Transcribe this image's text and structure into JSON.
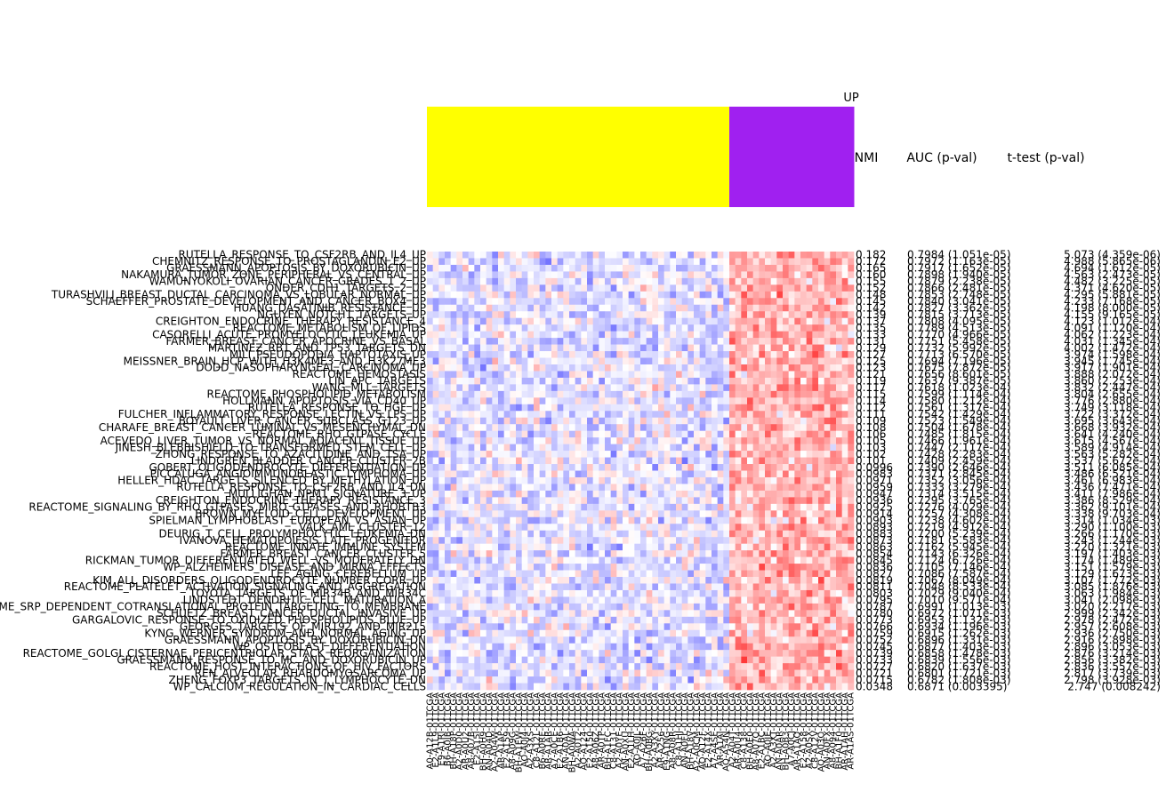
{
  "chart_data": {
    "type": "heatmap",
    "group_label": "UP",
    "group_colors": [
      "#ffff00",
      "#a020f0"
    ],
    "group_sizes": [
      51,
      21
    ],
    "color_scale": {
      "low": "#0000ff",
      "mid": "#ffffff",
      "high": "#ff0000"
    },
    "stat_headers": [
      "NMI",
      "AUC (p-val)",
      "t-test (p-val)"
    ],
    "rows": [
      {
        "label": "RUTELLA_RESPONSE_TO_CSF2RB_AND_IL4_UP",
        "nmi": "0.182",
        "auc": "0.7984 (1.051e-05)",
        "ttest": "5.073 (4.359e-06)"
      },
      {
        "label": "CHEMNITZ_RESPONSE_TO_PROSTAGLANDIN_E2_UP",
        "nmi": "0.172",
        "auc": "0.7972 (1.163e-05)",
        "ttest": "4.988 (5.865e-06)"
      },
      {
        "label": "GRAESSMANN_APOPTOSIS_BY_DOXORUBICIN_UP",
        "nmi": "0.165",
        "auc": "0.7917 (1.652e-05)",
        "ttest": "4.694 (1.612e-05)"
      },
      {
        "label": "NAKAMURA_TUMOR_ZONE_PERIPHERAL_VS_CENTRAL_UP",
        "nmi": "0.160",
        "auc": "0.7898 (1.940e-05)",
        "ttest": "4.563 (2.473e-05)"
      },
      {
        "label": "WAMUNYOKOLI_OVARIAN_CANCER_GRADES_1_2_UP",
        "nmi": "0.155",
        "auc": "0.7879 (2.238e-05)",
        "ttest": "4.482 (3.225e-05)"
      },
      {
        "label": "ONDER_CDH1_TARGETS_2_UP",
        "nmi": "0.152",
        "auc": "0.7866 (2.481e-05)",
        "ttest": "4.371 (4.620e-05)"
      },
      {
        "label": "TURASHVILI_BREAST_DUCTAL_CARCINOMA_VS_LOBULAR_NORMAL_UP",
        "nmi": "0.148",
        "auc": "0.7853 (2.748e-05)",
        "ttest": "4.295 (5.881e-05)"
      },
      {
        "label": "SCHAEFFER_PROSTATE_DEVELOPMENT_AND_CANCER_BOX4_UP",
        "nmi": "0.145",
        "auc": "0.7840 (3.041e-05)",
        "ttest": "4.233 (7.168e-05)"
      },
      {
        "label": "HUANG_DASATINIB_RESISTANCE_UP",
        "nmi": "0.142",
        "auc": "0.7827 (3.362e-05)",
        "ttest": "4.198 (8.000e-05)"
      },
      {
        "label": "NGUYEN_NOTCH1_TARGETS_UP",
        "nmi": "0.139",
        "auc": "0.7815 (3.713e-05)",
        "ttest": "4.155 (9.165e-05)"
      },
      {
        "label": "CREIGHTON_ENDOCRINE_THERAPY_RESISTANCE_4",
        "nmi": "0.137",
        "auc": "0.7808 (4.095e-05)",
        "ttest": "4.123 (1.012e-04)"
      },
      {
        "label": "REACTOME_METABOLISM_OF_LIPIDS",
        "nmi": "0.135",
        "auc": "0.7789 (4.513e-05)",
        "ttest": "4.091 (1.120e-04)"
      },
      {
        "label": "CASORELLI_ACUTE_PROMYELOCYTIC_LEUKEMIA_UP",
        "nmi": "0.133",
        "auc": "0.7770 (4.966e-05)",
        "ttest": "4.062 (1.223e-04)"
      },
      {
        "label": "FARMER_BREAST_CANCER_APOCRINE_VS_BASAL",
        "nmi": "0.131",
        "auc": "0.7751 (5.458e-05)",
        "ttest": "4.031 (1.345e-04)"
      },
      {
        "label": "MARTINEZ_RB1_AND_TP53_TARGETS_DN",
        "nmi": "0.129",
        "auc": "0.7732 (5.992e-05)",
        "ttest": "4.002 (1.472e-04)"
      },
      {
        "label": "MILI_PSEUDOPODIA_HAPTOTAXIS_UP",
        "nmi": "0.127",
        "auc": "0.7713 (6.570e-05)",
        "ttest": "3.974 (1.598e-04)"
      },
      {
        "label": "MEISSNER_BRAIN_HCP_WITH_H3K4ME3_AND_H3K27ME3",
        "nmi": "0.125",
        "auc": "0.7694 (7.196e-05)",
        "ttest": "3.945 (1.745e-04)"
      },
      {
        "label": "DODD_NASOPHARYNGEAL_CARCINOMA_UP",
        "nmi": "0.123",
        "auc": "0.7675 (7.872e-05)",
        "ttest": "3.917 (1.901e-04)"
      },
      {
        "label": "REACTOME_HEMOSTASIS",
        "nmi": "0.121",
        "auc": "0.7656 (8.601e-05)",
        "ttest": "3.888 (2.072e-04)"
      },
      {
        "label": "LIN_APC_TARGETS",
        "nmi": "0.119",
        "auc": "0.7637 (9.387e-05)",
        "ttest": "3.860 (2.253e-04)"
      },
      {
        "label": "WANG_MLL_TARGETS",
        "nmi": "0.117",
        "auc": "0.7618 (1.023e-04)",
        "ttest": "3.832 (2.447e-04)"
      },
      {
        "label": "REACTOME_PHOSPHOLIPID_METABOLISM",
        "nmi": "0.115",
        "auc": "0.7599 (1.114e-04)",
        "ttest": "3.804 (2.655e-04)"
      },
      {
        "label": "HOLLMANN_APOPTOSIS_VIA_CD40_UP",
        "nmi": "0.114",
        "auc": "0.7580 (1.212e-04)",
        "ttest": "3.776 (2.880e-04)"
      },
      {
        "label": "RUTELLA_RESPONSE_TO_HGF_UP",
        "nmi": "0.112",
        "auc": "0.7561 (1.317e-04)",
        "ttest": "3.749 (3.118e-04)"
      },
      {
        "label": "FULCHER_INFLAMMATORY_RESPONSE_LECTIN_VS_LPS_UP",
        "nmi": "0.111",
        "auc": "0.7542 (1.429e-04)",
        "ttest": "3.722 (3.372e-04)"
      },
      {
        "label": "BOYAULT_LIVER_CANCER_SUBCLASS_G123_UP",
        "nmi": "0.109",
        "auc": "0.7523 (1.549e-04)",
        "ttest": "3.695 (3.643e-04)"
      },
      {
        "label": "CHARAFE_BREAST_CANCER_LUMINAL_VS_MESENCHYMAL_DN",
        "nmi": "0.108",
        "auc": "0.7504 (1.678e-04)",
        "ttest": "3.668 (3.932e-04)"
      },
      {
        "label": "REACTOME_RHO_GTPASE_CYCLE",
        "nmi": "0.106",
        "auc": "0.7485 (1.815e-04)",
        "ttest": "3.641 (4.240e-04)"
      },
      {
        "label": "ACEVEDO_LIVER_TUMOR_VS_NORMAL_ADJACENT_TISSUE_UP",
        "nmi": "0.105",
        "auc": "0.7466 (1.961e-04)",
        "ttest": "3.615 (4.567e-04)"
      },
      {
        "label": "JINESH_BLEBBISHIELD_TO_TRANSFORMED_STEM_CELL_UP",
        "nmi": "0.103",
        "auc": "0.7447 (2.117e-04)",
        "ttest": "3.589 (4.914e-04)"
      },
      {
        "label": "ZHONG_RESPONSE_TO_AZACITIDINE_AND_TSA_UP",
        "nmi": "0.102",
        "auc": "0.7428 (2.283e-04)",
        "ttest": "3.563 (5.282e-04)"
      },
      {
        "label": "LINDGREN_BLADDER_CANCER_CLUSTER_2B",
        "nmi": "0.101",
        "auc": "0.7409 (2.459e-04)",
        "ttest": "3.537 (5.672e-04)"
      },
      {
        "label": "GOBERT_OLIGODENDROCYTE_DIFFERENTIATION_UP",
        "nmi": "0.0996",
        "auc": "0.7390 (2.646e-04)",
        "ttest": "3.511 (6.085e-04)"
      },
      {
        "label": "PICCALUGA_ANGIOIMMUNOBLASTIC_LYMPHOMA_UP",
        "nmi": "0.0983",
        "auc": "0.7371 (2.845e-04)",
        "ttest": "3.486 (6.521e-04)"
      },
      {
        "label": "HELLER_HDAC_TARGETS_SILENCED_BY_METHYLATION_UP",
        "nmi": "0.0971",
        "auc": "0.7352 (3.056e-04)",
        "ttest": "3.461 (6.983e-04)"
      },
      {
        "label": "RUTELLA_RESPONSE_TO_CSF2RB_AND_IL4_DN",
        "nmi": "0.0959",
        "auc": "0.7333 (3.279e-04)",
        "ttest": "3.436 (7.471e-04)"
      },
      {
        "label": "MULLIGHAN_NPM1_SIGNATURE_3_UP",
        "nmi": "0.0947",
        "auc": "0.7314 (3.515e-04)",
        "ttest": "3.411 (7.986e-04)"
      },
      {
        "label": "CREIGHTON_ENDOCRINE_THERAPY_RESISTANCE_3",
        "nmi": "0.0936",
        "auc": "0.7295 (3.765e-04)",
        "ttest": "3.386 (8.529e-04)"
      },
      {
        "label": "REACTOME_SIGNALING_BY_RHO_GTPASES_MIRO_GTPASES_AND_RHOBTB3",
        "nmi": "0.0925",
        "auc": "0.7276 (4.029e-04)",
        "ttest": "3.362 (9.101e-04)"
      },
      {
        "label": "BROWN_MYELOID_CELL_DEVELOPMENT_UP",
        "nmi": "0.0914",
        "auc": "0.7257 (4.308e-04)",
        "ttest": "3.338 (9.703e-04)"
      },
      {
        "label": "SPIELMAN_LYMPHOBLAST_EUROPEAN_VS_ASIAN_UP",
        "nmi": "0.0903",
        "auc": "0.7238 (4.602e-04)",
        "ttest": "3.314 (1.034e-03)"
      },
      {
        "label": "VALK_AML_CLUSTER_12",
        "nmi": "0.0893",
        "auc": "0.7219 (4.912e-04)",
        "ttest": "3.290 (1.100e-03)"
      },
      {
        "label": "DEURIG_T_CELL_PROLYMPHOCYTIC_LEUKEMIA_DN",
        "nmi": "0.0883",
        "auc": "0.7200 (5.239e-04)",
        "ttest": "3.266 (1.170e-03)"
      },
      {
        "label": "IVANOVA_HEMATOPOIESIS_LATE_PROGENITOR",
        "nmi": "0.0873",
        "auc": "0.7181 (5.583e-04)",
        "ttest": "3.243 (1.244e-03)"
      },
      {
        "label": "REACTOME_INNATE_IMMUNE_SYSTEM",
        "nmi": "0.0863",
        "auc": "0.7162 (5.945e-04)",
        "ttest": "3.220 (1.321e-03)"
      },
      {
        "label": "FARMER_BREAST_CANCER_CLUSTER_5",
        "nmi": "0.0854",
        "auc": "0.7143 (6.326e-04)",
        "ttest": "3.197 (1.403e-03)"
      },
      {
        "label": "RICKMAN_TUMOR_DIFFERENTIATED_WELL_VS_MODERATELY_DN",
        "nmi": "0.0845",
        "auc": "0.7124 (6.726e-04)",
        "ttest": "3.174 (1.489e-03)"
      },
      {
        "label": "WP_ALZHEIMERS_DISEASE_AND_MIRNA_EFFECTS",
        "nmi": "0.0836",
        "auc": "0.7105 (7.146e-04)",
        "ttest": "3.151 (1.579e-03)"
      },
      {
        "label": "LEE_AGING_CEREBELLUM_UP",
        "nmi": "0.0827",
        "auc": "0.7086 (7.587e-04)",
        "ttest": "3.129 (1.673e-03)"
      },
      {
        "label": "KIM_ALL_DISORDERS_OLIGODENDROCYTE_NUMBER_CORR_UP",
        "nmi": "0.0819",
        "auc": "0.7067 (8.049e-04)",
        "ttest": "3.107 (1.772e-03)"
      },
      {
        "label": "REACTOME_PLATELET_ACTIVATION_SIGNALING_AND_AGGREGATION",
        "nmi": "0.0811",
        "auc": "0.7048 (8.533e-04)",
        "ttest": "3.085 (1.876e-03)"
      },
      {
        "label": "TOYOTA_TARGETS_OF_MIR34B_AND_MIR34C",
        "nmi": "0.0803",
        "auc": "0.7029 (9.040e-04)",
        "ttest": "3.063 (1.984e-03)"
      },
      {
        "label": "LINDSTEDT_DENDRITIC_CELL_MATURATION_A",
        "nmi": "0.0795",
        "auc": "0.7010 (9.571e-04)",
        "ttest": "3.041 (2.098e-03)"
      },
      {
        "label": "REACTOME_SRP_DEPENDENT_COTRANSLATIONAL_PROTEIN_TARGETING_TO_MEMBRANE",
        "nmi": "0.0787",
        "auc": "0.6991 (1.013e-03)",
        "ttest": "3.020 (2.217e-03)"
      },
      {
        "label": "SCHUETZ_BREAST_CANCER_DUCTAL_INVASIVE_UP",
        "nmi": "0.0780",
        "auc": "0.6972 (1.071e-03)",
        "ttest": "2.999 (2.342e-03)"
      },
      {
        "label": "GARGALOVIC_RESPONSE_TO_OXIDIZED_PHOSPHOLIPIDS_BLUE_UP",
        "nmi": "0.0773",
        "auc": "0.6953 (1.132e-03)",
        "ttest": "2.978 (2.472e-03)"
      },
      {
        "label": "GEORGES_TARGETS_OF_MIR192_AND_MIR215",
        "nmi": "0.0766",
        "auc": "0.6934 (1.196e-03)",
        "ttest": "2.957 (2.608e-03)"
      },
      {
        "label": "KYNG_WERNER_SYNDROM_AND_NORMAL_AGING_UP",
        "nmi": "0.0759",
        "auc": "0.6915 (1.262e-03)",
        "ttest": "2.936 (2.750e-03)"
      },
      {
        "label": "GRAESSMANN_APOPTOSIS_BY_DOXORUBICIN_DN",
        "nmi": "0.0752",
        "auc": "0.6896 (1.331e-03)",
        "ttest": "2.916 (2.898e-03)"
      },
      {
        "label": "WP_OSTEOBLAST_DIFFERENTIATION",
        "nmi": "0.0745",
        "auc": "0.6877 (1.403e-03)",
        "ttest": "2.896 (3.053e-03)"
      },
      {
        "label": "REACTOME_GOLGI_CISTERNAE_PERICENTRIOLAR_STACK_REORGANIZATION",
        "nmi": "0.0739",
        "auc": "0.6858 (1.478e-03)",
        "ttest": "2.876 (3.214e-03)"
      },
      {
        "label": "GRAESSMANN_RESPONSE_TO_MC_AND_DOXORUBICIN_UP",
        "nmi": "0.0733",
        "auc": "0.6839 (1.556e-03)",
        "ttest": "2.856 (3.382e-03)"
      },
      {
        "label": "REACTOME_HOST_INTERACTIONS_OF_HIV_FACTORS",
        "nmi": "0.0727",
        "auc": "0.6820 (1.637e-03)",
        "ttest": "2.836 (3.557e-03)"
      },
      {
        "label": "REN_ALVEOLAR_RHABDOMYOSARCOMA_UP",
        "nmi": "0.0721",
        "auc": "0.6801 (1.721e-03)",
        "ttest": "2.817 (3.739e-03)"
      },
      {
        "label": "ZHENG_FOXP3_TARGETS_IN_T_LYMPHOCYTE_DN",
        "nmi": "0.0715",
        "auc": "0.6782 (1.808e-03)",
        "ttest": "2.798 (3.928e-03)"
      },
      {
        "label": "WP_CALCIUM_REGULATION_IN_CARDIAC_CELLS",
        "nmi": "0.0348",
        "auc": "0.6871 (0.003395)",
        "ttest": "2.747 (0.008242)"
      }
    ],
    "samples": [
      "A0-A12B-01TCGA",
      "E2-A1L9-01TCGA",
      "E9-A1RI-01TCGA",
      "B6-A0IB-01TCGA",
      "BH-A18P-01TCGA",
      "A2-A0D0-01TCGA",
      "AR-A0U2-01TCGA",
      "A8-A07B-01TCGA",
      "E2-A15I-01TCGA",
      "BH-A0H9-01TCGA",
      "AN-A04D-01TCGA",
      "A2-A04W-01TCGA",
      "AR-A1AP-01TCGA",
      "E2-A159-01TCGA",
      "A8-A09G-01TCGA",
      "BH-A1EW-01TCGA",
      "AO-A0J4-01TCGA",
      "A2-A3XS-01TCGA",
      "C8-A12L-01TCGA",
      "B6-A0RE-01TCGA",
      "AR-A1AR-01TCGA",
      "A7-A0CE-01TCGA",
      "E2-A1B6-01TCGA",
      "AN-A0AL-01TCGA",
      "BH-A0WA-01TCGA",
      "A2-A0T2-01TCGA",
      "AO-A124-01TCGA",
      "E2-A150-01TCGA",
      "A8-A06Z-01TCGA",
      "AR-A0TP-01TCGA",
      "BH-A1FC-01TCGA",
      "C8-A131-01TCGA",
      "A2-A0YE-01TCGA",
      "AN-A0XU-01TCGA",
      "E2-A1LH-01TCGA",
      "AO-A0JL-01TCGA",
      "A7-A26F-01TCGA",
      "BH-A0BG-01TCGA",
      "A2-A3XY-01TCGA",
      "AR-A256-01TCGA",
      "E9-A1NG-01TCGA",
      "A8-A08R-01TCGA",
      "C8-A1HJ-01TCGA",
      "AN-A0FL-01TCGA",
      "BH-A18V-01TCGA",
      "A2-A0CM-01TCGA",
      "AO-A12F-01TCGA",
      "E2-A14X-01TCGA",
      "A7-A4SE-01TCGA",
      "AR-A1AI-01TCGA",
      "AQ-A54N-01TCGA",
      "A2-A04T-01TCGA",
      "AR-A0U4-01TCGA",
      "C8-A138-01TCGA",
      "BH-A0E0-01TCGA",
      "A8-A07O-01TCGA",
      "E2-A1BC-01TCGA",
      "AO-A0JE-01TCGA",
      "A2-A3XT-01TCGA",
      "AN-A0AR-01TCGA",
      "BH-A0B3-01TCGA",
      "A7-A0CJ-01TCGA",
      "AR-A1AQ-01TCGA",
      "E2-A158-01TCGA",
      "A2-A0SX-01TCGA",
      "C8-A12V-01TCGA",
      "AO-A03O-01TCGA",
      "AN-A0FX-01TCGA",
      "A8-A094-01TCGA",
      "BH-A1F0-01TCGA",
      "AR-A1AH-01TCGA",
      "AR-A1AS-01TCGA"
    ]
  }
}
